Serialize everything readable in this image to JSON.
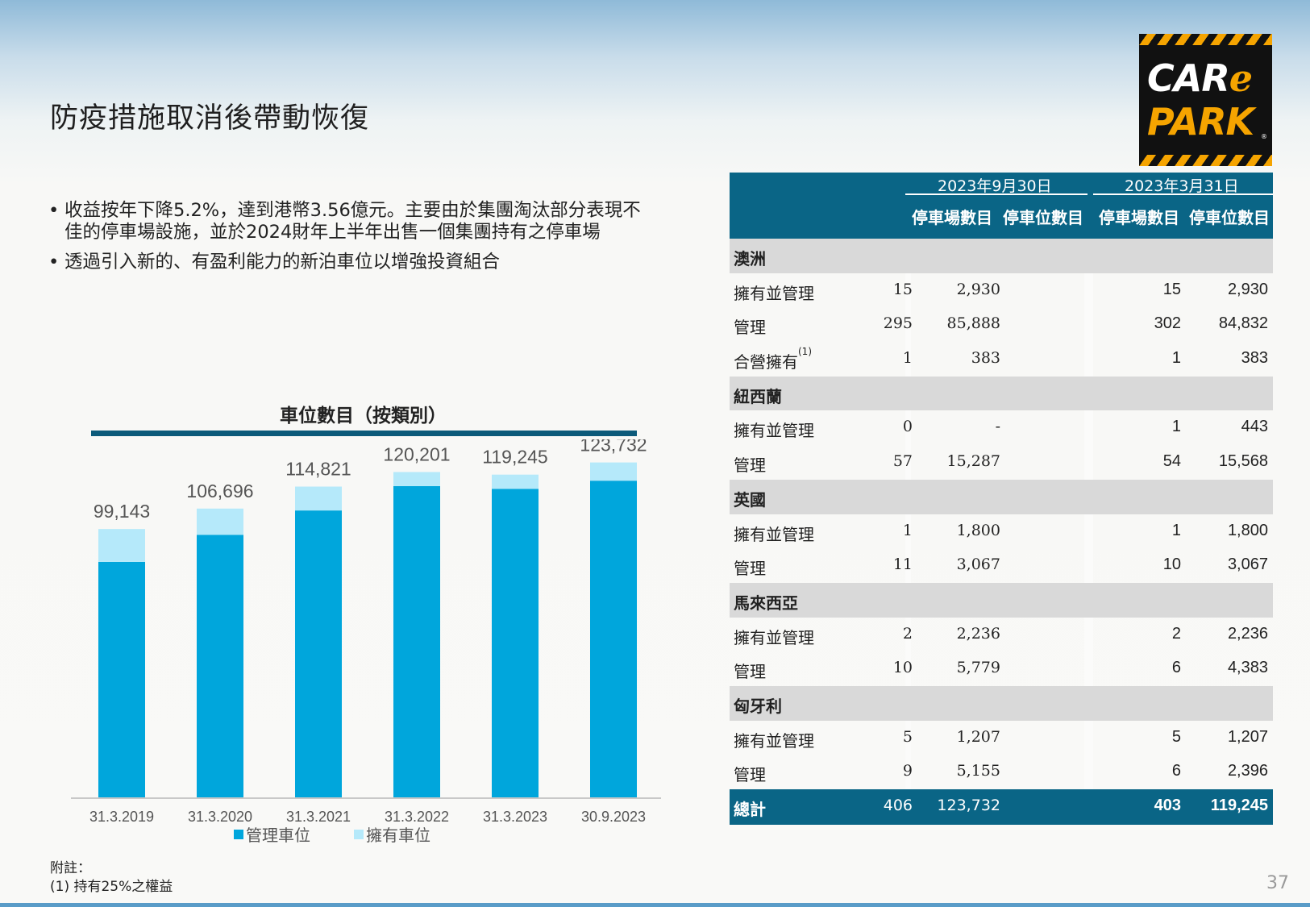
{
  "title": "防疫措施取消後帶動恢復",
  "bullets": [
    "收益按年下降5.2%，達到港幣3.56億元。主要由於集團淘汰部分表現不佳的停車場設施，並於2024財年上半年出售一個集團持有之停車場",
    "透過引入新的、有盈利能力的新泊車位以增強投資組合"
  ],
  "logo": {
    "line1": "CAR",
    "line1_e": "e",
    "line2": "PARK",
    "reg": "®"
  },
  "chart_data": {
    "type": "bar",
    "stacked": true,
    "title": "車位數目（按類別）",
    "categories": [
      "31.3.2019",
      "31.3.2020",
      "31.3.2021",
      "31.3.2022",
      "31.3.2023",
      "30.9.2023"
    ],
    "totals_labels": [
      "99,143",
      "106,696",
      "114,821",
      "120,201",
      "119,245",
      "123,732"
    ],
    "totals": [
      99143,
      106696,
      114821,
      120201,
      119245,
      123732
    ],
    "series": [
      {
        "name": "管理車位",
        "color": "#00a6dc",
        "values": [
          87000,
          97000,
          106000,
          115000,
          114000,
          117000
        ]
      },
      {
        "name": "擁有車位",
        "color": "#b5e9fa",
        "values": [
          12143,
          9696,
          8821,
          5201,
          5245,
          6732
        ]
      }
    ],
    "ylim": [
      0,
      140000
    ],
    "grid": false,
    "legend": "bottom"
  },
  "table": {
    "period1": "2023年9月30日",
    "period2": "2023年3月31日",
    "col_lots": "停車場數目",
    "col_spaces": "停車位數目",
    "rows": [
      {
        "type": "region",
        "label": "澳洲"
      },
      {
        "type": "data",
        "label": "擁有並管理",
        "v": [
          "15",
          "2,930",
          "15",
          "2,930"
        ]
      },
      {
        "type": "data",
        "label": "管理",
        "v": [
          "295",
          "85,888",
          "302",
          "84,832"
        ]
      },
      {
        "type": "data",
        "label": "合營擁有",
        "sup": "(1)",
        "v": [
          "1",
          "383",
          "1",
          "383"
        ]
      },
      {
        "type": "region",
        "label": "紐西蘭"
      },
      {
        "type": "data",
        "label": "擁有並管理",
        "v": [
          "0",
          "-",
          "1",
          "443"
        ]
      },
      {
        "type": "data",
        "label": "管理",
        "v": [
          "57",
          "15,287",
          "54",
          "15,568"
        ]
      },
      {
        "type": "region",
        "label": "英國"
      },
      {
        "type": "data",
        "label": "擁有並管理",
        "v": [
          "1",
          "1,800",
          "1",
          "1,800"
        ]
      },
      {
        "type": "data",
        "label": "管理",
        "v": [
          "11",
          "3,067",
          "10",
          "3,067"
        ]
      },
      {
        "type": "region",
        "label": "馬來西亞"
      },
      {
        "type": "data",
        "label": "擁有並管理",
        "v": [
          "2",
          "2,236",
          "2",
          "2,236"
        ]
      },
      {
        "type": "data",
        "label": "管理",
        "v": [
          "10",
          "5,779",
          "6",
          "4,383"
        ]
      },
      {
        "type": "region",
        "label": "匈牙利"
      },
      {
        "type": "data",
        "label": "擁有並管理",
        "v": [
          "5",
          "1,207",
          "5",
          "1,207"
        ]
      },
      {
        "type": "data",
        "label": "管理",
        "v": [
          "9",
          "5,155",
          "6",
          "2,396"
        ]
      },
      {
        "type": "total",
        "label": "總計",
        "v": [
          "406",
          "123,732",
          "403",
          "119,245"
        ]
      }
    ]
  },
  "footnote": {
    "title": "附註：",
    "item": "(1)   持有25%之權益"
  },
  "page_number": "37"
}
